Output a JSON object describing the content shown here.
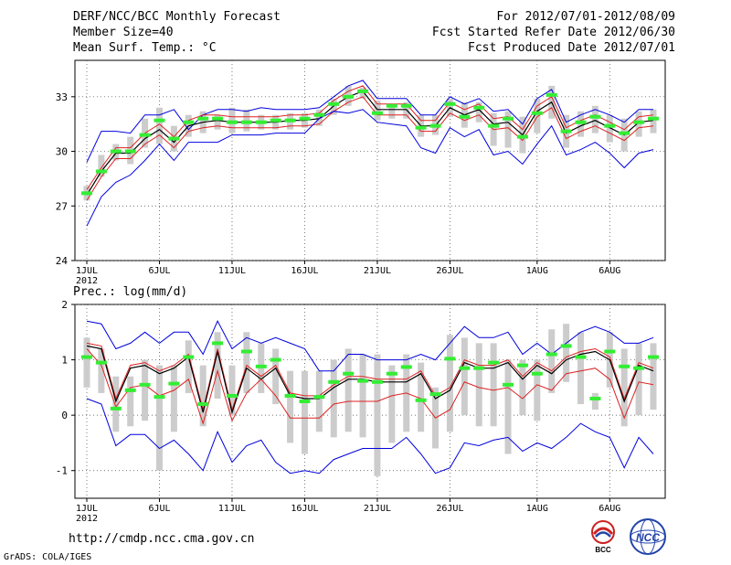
{
  "header": {
    "title": "DERF/NCC/BCC Monthly Forecast",
    "member_size": "Member Size=40",
    "variable": "Mean Surf. Temp.: °C",
    "forecast_period": "For 2012/07/01-2012/08/09",
    "started": "Fcst Started Refer Date 2012/06/30",
    "produced": "Fcst Produced Date 2012/07/01"
  },
  "footer": {
    "url": "http://cmdp.ncc.cma.gov.cn",
    "grads": "GrADS: COLA/IGES",
    "bcc_logo_text": "BCC",
    "ncc_logo_text": "NCC"
  },
  "colors": {
    "upper_envelope": "#0000dd",
    "lower_envelope": "#0000dd",
    "ensemble_mean": "#000000",
    "band": "#dd2222",
    "observed": "#33ee33",
    "spread_bar": "#cccccc",
    "grid": "#444444"
  },
  "chart_data": [
    {
      "type": "line",
      "title": "Mean Surf. Temp.: °C",
      "x_ticks": [
        "1JUL",
        "6JUL",
        "11JUL",
        "16JUL",
        "21JUL",
        "26JUL",
        "1AUG",
        "6AUG"
      ],
      "x_tick_days": [
        1,
        6,
        11,
        16,
        21,
        26,
        32,
        37
      ],
      "year_label": "2012",
      "ylim": [
        24,
        35
      ],
      "y_ticks": [
        24,
        27,
        30,
        33
      ],
      "days": 40,
      "series": [
        {
          "name": "max",
          "values": [
            29.4,
            31.1,
            31.1,
            31,
            32,
            32,
            32.3,
            31.2,
            32,
            32.3,
            32.3,
            32.2,
            32.4,
            32.3,
            32.3,
            32.3,
            32.4,
            33,
            33.6,
            33.9,
            32.9,
            32.9,
            32.9,
            32,
            32,
            33,
            32.6,
            32.9,
            32.2,
            32.3,
            31.5,
            32.9,
            33.4,
            31.6,
            32,
            32.3,
            32,
            31.6,
            32.3,
            32.3
          ]
        },
        {
          "name": "upper",
          "values": [
            27.9,
            29.1,
            30.2,
            30.2,
            31,
            31.5,
            30.8,
            31.7,
            32,
            32,
            31.9,
            31.9,
            31.9,
            31.9,
            32,
            32,
            32.1,
            32.8,
            33.3,
            33.6,
            32.6,
            32.6,
            32.6,
            31.7,
            31.7,
            32.7,
            32.3,
            32.6,
            31.8,
            31.9,
            31.2,
            32.5,
            33,
            31.3,
            31.7,
            32,
            31.6,
            31.2,
            31.9,
            32
          ]
        },
        {
          "name": "mean",
          "values": [
            27.6,
            28.9,
            29.9,
            29.9,
            30.7,
            31.2,
            30.5,
            31.4,
            31.6,
            31.7,
            31.6,
            31.6,
            31.6,
            31.6,
            31.7,
            31.7,
            31.8,
            32.5,
            33,
            33.3,
            32.3,
            32.3,
            32.3,
            31.4,
            31.4,
            32.4,
            32,
            32.3,
            31.5,
            31.6,
            30.9,
            32.2,
            32.7,
            31,
            31.4,
            31.7,
            31.3,
            30.9,
            31.6,
            31.7
          ]
        },
        {
          "name": "lower",
          "values": [
            27.3,
            28.6,
            29.6,
            29.6,
            30.4,
            30.9,
            30.2,
            31.1,
            31.3,
            31.4,
            31.3,
            31.3,
            31.3,
            31.3,
            31.4,
            31.4,
            31.5,
            32.2,
            32.7,
            33,
            32,
            32,
            32,
            31.1,
            31.1,
            32.1,
            31.7,
            32,
            31.2,
            31.3,
            30.6,
            31.9,
            32.4,
            30.7,
            31.1,
            31.4,
            31,
            30.6,
            31.3,
            31.4
          ]
        },
        {
          "name": "min",
          "values": [
            25.9,
            27.5,
            28.3,
            28.7,
            29.5,
            30.4,
            29.5,
            30.5,
            30.5,
            30.5,
            30.9,
            30.9,
            30.9,
            31,
            31,
            31,
            31.8,
            32.2,
            32.1,
            32.3,
            31.6,
            31.5,
            31.4,
            30.2,
            29.9,
            31.3,
            30.8,
            31.2,
            29.8,
            30,
            29.3,
            30.4,
            31.4,
            29.8,
            30.1,
            30.5,
            29.9,
            29.1,
            29.9,
            30.1
          ]
        },
        {
          "name": "observed",
          "values": [
            27.7,
            28.9,
            30,
            30,
            30.9,
            31.7,
            30.7,
            31.6,
            31.8,
            31.8,
            31.6,
            31.6,
            31.6,
            31.7,
            31.7,
            31.8,
            32,
            32.6,
            33,
            33.3,
            32.1,
            32.5,
            32.5,
            31.3,
            31.4,
            32.6,
            31.9,
            32.4,
            31.4,
            31.8,
            30.8,
            32.1,
            33.1,
            31.1,
            31.6,
            31.9,
            31.4,
            31,
            31.6,
            31.8
          ]
        }
      ],
      "spread": [
        [
          27.3,
          28.1
        ],
        [
          28.6,
          29.8
        ],
        [
          29.5,
          30.4
        ],
        [
          29.3,
          30.8
        ],
        [
          30.2,
          31.8
        ],
        [
          30.4,
          32.4
        ],
        [
          30,
          31.4
        ],
        [
          30.8,
          32
        ],
        [
          31,
          32.2
        ],
        [
          31.2,
          32
        ],
        [
          31,
          32.4
        ],
        [
          31.1,
          32.3
        ],
        [
          31.2,
          32
        ],
        [
          31.2,
          32
        ],
        [
          31.2,
          32.1
        ],
        [
          31.3,
          32.1
        ],
        [
          31.4,
          32.3
        ],
        [
          32,
          32.9
        ],
        [
          32.5,
          33.6
        ],
        [
          32.9,
          33.5
        ],
        [
          31.7,
          32.8
        ],
        [
          31.8,
          32.6
        ],
        [
          31.8,
          32.7
        ],
        [
          30.8,
          32
        ],
        [
          30.9,
          32
        ],
        [
          31.9,
          32.9
        ],
        [
          31.3,
          32.7
        ],
        [
          31.6,
          32.7
        ],
        [
          30.3,
          32.1
        ],
        [
          30.2,
          32.2
        ],
        [
          29.9,
          31.9
        ],
        [
          31,
          32.9
        ],
        [
          31.8,
          33.6
        ],
        [
          30.2,
          32
        ],
        [
          30.8,
          32.2
        ],
        [
          31,
          32.5
        ],
        [
          30.5,
          32
        ],
        [
          30,
          31.8
        ],
        [
          30.8,
          32.2
        ],
        [
          31,
          32.3
        ]
      ]
    },
    {
      "type": "line",
      "title": "Prec.: log(mm/d)",
      "x_ticks": [
        "1JUL",
        "6JUL",
        "11JUL",
        "16JUL",
        "21JUL",
        "26JUL",
        "1AUG",
        "6AUG"
      ],
      "x_tick_days": [
        1,
        6,
        11,
        16,
        21,
        26,
        32,
        37
      ],
      "year_label": "2012",
      "ylim": [
        -1.5,
        2.0
      ],
      "y_ticks": [
        -1,
        0,
        1,
        2
      ],
      "days": 40,
      "series": [
        {
          "name": "max",
          "values": [
            1.7,
            1.65,
            1.2,
            1.3,
            1.5,
            1.3,
            1.5,
            1.5,
            1.1,
            1.7,
            1.2,
            1.4,
            1.3,
            1.4,
            1.3,
            1.2,
            0.8,
            0.8,
            1.1,
            1.1,
            1.0,
            1.0,
            1.0,
            1.1,
            1.0,
            1.3,
            1.6,
            1.4,
            1.4,
            1.5,
            1.1,
            1.3,
            1.1,
            1.3,
            1.5,
            1.6,
            1.5,
            1.3,
            1.3,
            1.4
          ]
        },
        {
          "name": "upper",
          "values": [
            1.3,
            1.25,
            0.3,
            0.9,
            0.95,
            0.8,
            0.9,
            1.1,
            0.1,
            1.2,
            0.1,
            0.9,
            0.7,
            0.9,
            0.4,
            0.35,
            0.35,
            0.55,
            0.7,
            0.7,
            0.65,
            0.65,
            0.65,
            0.8,
            0.35,
            0.5,
            1.0,
            0.9,
            0.9,
            1.0,
            0.7,
            0.95,
            0.8,
            1.05,
            1.15,
            1.2,
            1.05,
            0.3,
            0.95,
            0.85
          ]
        },
        {
          "name": "mean",
          "values": [
            1.25,
            1.2,
            0.25,
            0.85,
            0.9,
            0.75,
            0.85,
            1.05,
            0.05,
            1.15,
            0.05,
            0.85,
            0.65,
            0.85,
            0.35,
            0.3,
            0.3,
            0.5,
            0.65,
            0.65,
            0.6,
            0.6,
            0.6,
            0.75,
            0.3,
            0.45,
            0.95,
            0.85,
            0.85,
            0.95,
            0.65,
            0.9,
            0.75,
            1.0,
            1.1,
            1.15,
            1.0,
            0.25,
            0.9,
            0.8
          ]
        },
        {
          "name": "lower",
          "values": [
            1.2,
            0.9,
            0.15,
            0.5,
            0.55,
            0.35,
            0.45,
            0.65,
            -0.15,
            0.8,
            -0.1,
            0.4,
            0.65,
            0.35,
            -0.05,
            -0.05,
            -0.05,
            0.2,
            0.25,
            0.25,
            0.25,
            0.35,
            0.4,
            0.3,
            -0.05,
            0.1,
            0.6,
            0.5,
            0.45,
            0.5,
            0.3,
            0.55,
            0.45,
            0.75,
            0.8,
            0.85,
            0.65,
            -0.05,
            0.6,
            0.55
          ]
        },
        {
          "name": "min",
          "values": [
            0.3,
            0.2,
            -0.55,
            -0.35,
            -0.35,
            -0.6,
            -0.45,
            -0.7,
            -1.0,
            -0.3,
            -0.85,
            -0.55,
            -0.45,
            -0.85,
            -1.05,
            -1.0,
            -1.05,
            -0.8,
            -0.7,
            -0.6,
            -0.6,
            -0.6,
            -0.4,
            -0.7,
            -1.05,
            -0.95,
            -0.5,
            -0.55,
            -0.45,
            -0.4,
            -0.65,
            -0.5,
            -0.6,
            -0.4,
            -0.15,
            -0.3,
            -0.4,
            -0.95,
            -0.4,
            -0.7
          ]
        },
        {
          "name": "observed",
          "values": [
            1.05,
            0.95,
            0.12,
            0.45,
            0.55,
            0.33,
            0.57,
            1.05,
            0.2,
            1.3,
            0.35,
            1.15,
            0.88,
            1.0,
            0.35,
            0.25,
            0.33,
            0.6,
            0.75,
            0.62,
            0.6,
            0.75,
            0.87,
            0.27,
            0.38,
            1.02,
            0.85,
            0.85,
            0.95,
            0.55,
            0.9,
            0.75,
            1.1,
            1.25,
            1.05,
            0.3,
            1.15,
            0.88,
            0.85,
            1.05
          ]
        }
      ],
      "spread": [
        [
          0.5,
          1.4
        ],
        [
          0.4,
          1.2
        ],
        [
          -0.3,
          0.7
        ],
        [
          -0.2,
          0.7
        ],
        [
          -0.1,
          1.0
        ],
        [
          -1.0,
          0.9
        ],
        [
          -0.3,
          0.9
        ],
        [
          0.4,
          1.35
        ],
        [
          -0.2,
          0.9
        ],
        [
          0.3,
          1.5
        ],
        [
          0.0,
          0.9
        ],
        [
          0.4,
          1.5
        ],
        [
          0.4,
          1.3
        ],
        [
          0.2,
          1.2
        ],
        [
          -0.5,
          0.8
        ],
        [
          -0.7,
          0.8
        ],
        [
          -0.3,
          0.8
        ],
        [
          -0.4,
          1.0
        ],
        [
          -0.3,
          1.2
        ],
        [
          -0.4,
          1.1
        ],
        [
          -1.1,
          1.1
        ],
        [
          -0.5,
          0.9
        ],
        [
          -0.3,
          1.1
        ],
        [
          -0.3,
          0.95
        ],
        [
          -0.6,
          0.5
        ],
        [
          -0.3,
          1.45
        ],
        [
          0.0,
          1.4
        ],
        [
          -0.2,
          1.3
        ],
        [
          -0.2,
          1.3
        ],
        [
          -0.7,
          1.0
        ],
        [
          0.0,
          1.0
        ],
        [
          -0.1,
          1.0
        ],
        [
          0.4,
          1.55
        ],
        [
          0.6,
          1.65
        ],
        [
          0.2,
          1.5
        ],
        [
          0.1,
          0.4
        ],
        [
          0.5,
          1.5
        ],
        [
          -0.2,
          1.2
        ],
        [
          0.0,
          1.3
        ],
        [
          0.1,
          1.3
        ]
      ]
    }
  ]
}
